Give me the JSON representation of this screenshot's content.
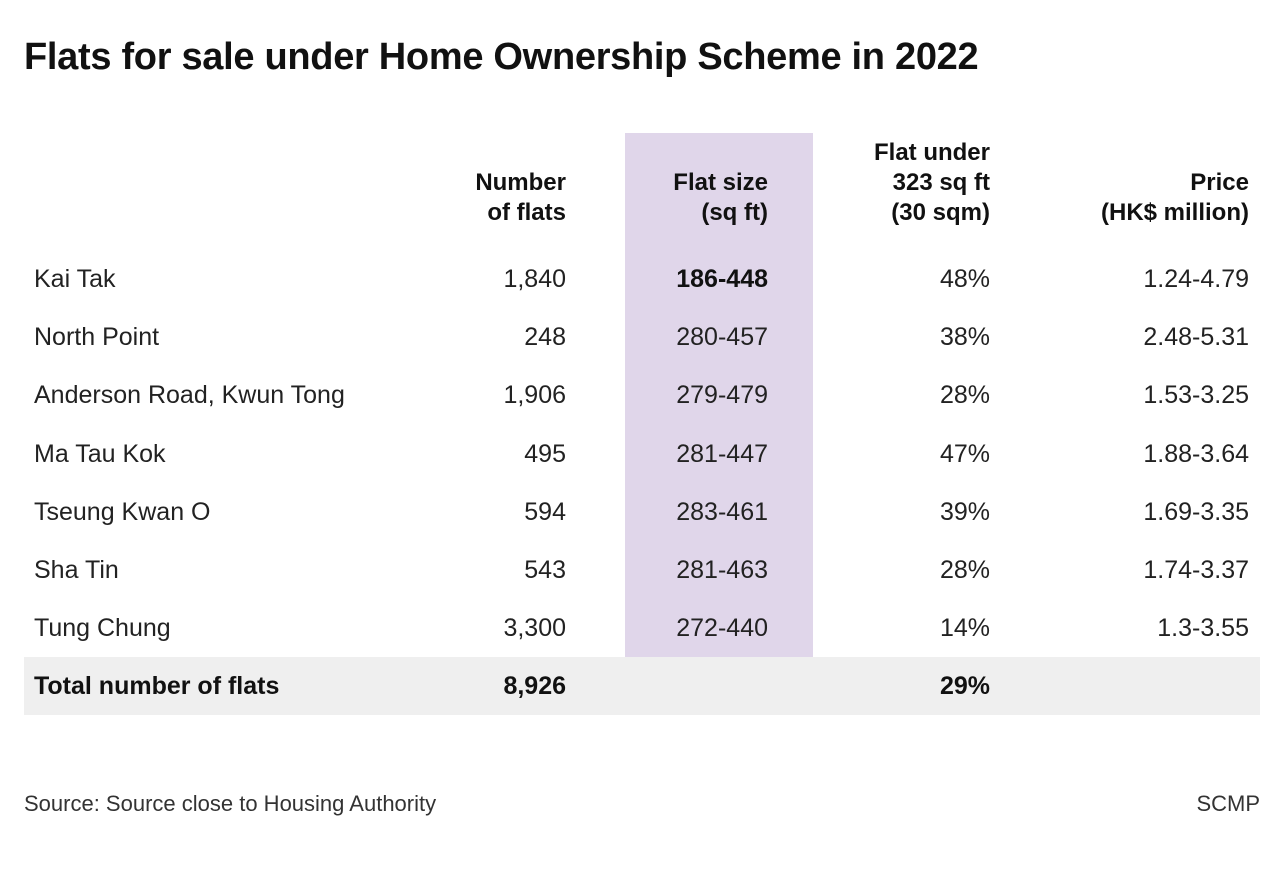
{
  "chart_data": {
    "type": "table",
    "title": "Flats for sale under Home Ownership Scheme in 2022",
    "columns": [
      {
        "key": "location",
        "label": []
      },
      {
        "key": "flats",
        "label": [
          "Number",
          "of flats"
        ]
      },
      {
        "key": "size",
        "label": [
          "Flat size",
          "(sq ft)"
        ]
      },
      {
        "key": "under323",
        "label": [
          "Flat under",
          "323 sq ft",
          "(30 sqm)"
        ]
      },
      {
        "key": "price",
        "label": [
          "Price",
          "(HK$ million)"
        ]
      }
    ],
    "rows": [
      {
        "location": "Kai Tak",
        "flats": "1,840",
        "size": "186-448",
        "under323": "48%",
        "price": "1.24-4.79"
      },
      {
        "location": "North Point",
        "flats": "248",
        "size": "280-457",
        "under323": "38%",
        "price": "2.48-5.31"
      },
      {
        "location": "Anderson Road, Kwun Tong",
        "flats": "1,906",
        "size": "279-479",
        "under323": "28%",
        "price": "1.53-3.25"
      },
      {
        "location": "Ma Tau Kok",
        "flats": "495",
        "size": "281-447",
        "under323": "47%",
        "price": "1.88-3.64"
      },
      {
        "location": "Tseung Kwan O",
        "flats": "594",
        "size": "283-461",
        "under323": "39%",
        "price": "1.69-3.35"
      },
      {
        "location": "Sha Tin",
        "flats": "543",
        "size": "281-463",
        "under323": "28%",
        "price": "1.74-3.37"
      },
      {
        "location": "Tung Chung",
        "flats": "3,300",
        "size": "272-440",
        "under323": "14%",
        "price": "1.3-3.55"
      }
    ],
    "emphasized_cell": {
      "row": 0,
      "column": "size"
    },
    "highlighted_column": "size",
    "highlight_color": "#e0d6ea",
    "total": {
      "location": "Total number of flats",
      "flats": "8,926",
      "under323": "29%"
    },
    "total_band_color": "#efefef",
    "source": "Source: Source close to Housing Authority",
    "credit": "SCMP"
  }
}
